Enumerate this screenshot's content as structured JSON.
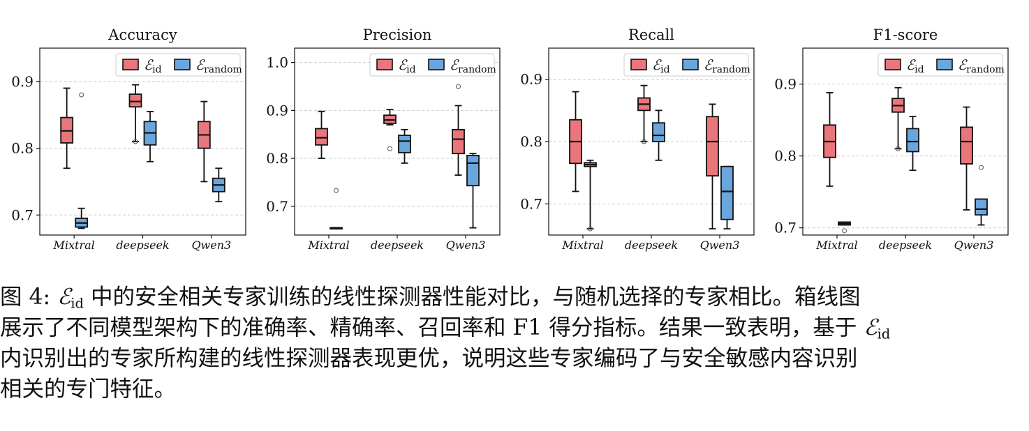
{
  "legend": {
    "e_id": "id",
    "e_random": "random",
    "symbol": "ℰ"
  },
  "colors": {
    "e_id": "#e8767a",
    "e_random": "#6aa6dd",
    "edge": "#111111",
    "grid": "#cccccc"
  },
  "caption": {
    "label": "图 4:",
    "symbol": "ℰ",
    "sub": "id",
    "line1_rest": " 中的安全相关专家训练的线性探测器性能对比，与随机选择的专家相比。箱线图",
    "line2": "展示了不同模型架构下的准确率、精确率、召回率和 F1 得分指标。结果一致表明，基于",
    "line3": "内识别出的专家所构建的线性探测器表现更优，说明这些专家编码了与安全敏感内容识别",
    "line4": "相关的专门特征。"
  },
  "chart_data": [
    {
      "type": "box",
      "title": "Accuracy",
      "categories": [
        "Mixtral",
        "deepseek",
        "Qwen3"
      ],
      "ylim": [
        0.67,
        0.95
      ],
      "yticks": [
        0.7,
        0.8,
        0.9
      ],
      "ytick_labels": [
        "0.7",
        "0.8",
        "0.9"
      ],
      "legend_position": "top-right",
      "series": [
        {
          "name": "E_id",
          "boxes": [
            {
              "whislo": 0.77,
              "q1": 0.808,
              "med": 0.826,
              "q3": 0.846,
              "whishi": 0.89,
              "fliers": []
            },
            {
              "whislo": 0.81,
              "q1": 0.862,
              "med": 0.87,
              "q3": 0.881,
              "whishi": 0.895,
              "fliers": [
                0.81
              ]
            },
            {
              "whislo": 0.75,
              "q1": 0.8,
              "med": 0.82,
              "q3": 0.84,
              "whishi": 0.87,
              "fliers": []
            }
          ]
        },
        {
          "name": "E_random",
          "boxes": [
            {
              "whislo": 0.68,
              "q1": 0.682,
              "med": 0.688,
              "q3": 0.695,
              "whishi": 0.71,
              "fliers": [
                0.88
              ]
            },
            {
              "whislo": 0.78,
              "q1": 0.805,
              "med": 0.823,
              "q3": 0.84,
              "whishi": 0.855,
              "fliers": []
            },
            {
              "whislo": 0.72,
              "q1": 0.735,
              "med": 0.745,
              "q3": 0.755,
              "whishi": 0.77,
              "fliers": []
            }
          ]
        }
      ]
    },
    {
      "type": "box",
      "title": "Precision",
      "categories": [
        "Mixtral",
        "deepseek",
        "Qwen3"
      ],
      "ylim": [
        0.64,
        1.03
      ],
      "yticks": [
        0.7,
        0.8,
        0.9,
        1.0
      ],
      "ytick_labels": [
        "0.7",
        "0.8",
        "0.9",
        "1.0"
      ],
      "legend_position": "top-right",
      "series": [
        {
          "name": "E_id",
          "boxes": [
            {
              "whislo": 0.8,
              "q1": 0.828,
              "med": 0.843,
              "q3": 0.862,
              "whishi": 0.898,
              "fliers": []
            },
            {
              "whislo": 0.87,
              "q1": 0.873,
              "med": 0.88,
              "q3": 0.89,
              "whishi": 0.902,
              "fliers": [
                0.82
              ]
            },
            {
              "whislo": 0.765,
              "q1": 0.81,
              "med": 0.84,
              "q3": 0.86,
              "whishi": 0.91,
              "fliers": [
                0.95
              ]
            }
          ]
        },
        {
          "name": "E_random",
          "boxes": [
            {
              "whislo": 0.655,
              "q1": 0.655,
              "med": 0.655,
              "q3": 0.655,
              "whishi": 0.655,
              "fliers": [
                0.733
              ]
            },
            {
              "whislo": 0.79,
              "q1": 0.812,
              "med": 0.836,
              "q3": 0.848,
              "whishi": 0.86,
              "fliers": []
            },
            {
              "whislo": 0.655,
              "q1": 0.743,
              "med": 0.79,
              "q3": 0.806,
              "whishi": 0.81,
              "fliers": []
            }
          ]
        }
      ]
    },
    {
      "type": "box",
      "title": "Recall",
      "categories": [
        "Mixtral",
        "deepseek",
        "Qwen3"
      ],
      "ylim": [
        0.65,
        0.95
      ],
      "yticks": [
        0.7,
        0.8,
        0.9
      ],
      "ytick_labels": [
        "0.7",
        "0.8",
        "0.9"
      ],
      "legend_position": "top-right",
      "series": [
        {
          "name": "E_id",
          "boxes": [
            {
              "whislo": 0.72,
              "q1": 0.765,
              "med": 0.8,
              "q3": 0.835,
              "whishi": 0.88,
              "fliers": []
            },
            {
              "whislo": 0.8,
              "q1": 0.85,
              "med": 0.86,
              "q3": 0.87,
              "whishi": 0.89,
              "fliers": [
                0.8
              ]
            },
            {
              "whislo": 0.66,
              "q1": 0.745,
              "med": 0.8,
              "q3": 0.84,
              "whishi": 0.86,
              "fliers": []
            }
          ]
        },
        {
          "name": "E_random",
          "boxes": [
            {
              "whislo": 0.66,
              "q1": 0.76,
              "med": 0.763,
              "q3": 0.766,
              "whishi": 0.77,
              "fliers": [
                0.66
              ]
            },
            {
              "whislo": 0.77,
              "q1": 0.8,
              "med": 0.81,
              "q3": 0.83,
              "whishi": 0.85,
              "fliers": []
            },
            {
              "whislo": 0.66,
              "q1": 0.675,
              "med": 0.72,
              "q3": 0.76,
              "whishi": 0.76,
              "fliers": []
            }
          ]
        }
      ]
    },
    {
      "type": "box",
      "title": "F1-score",
      "categories": [
        "Mixtral",
        "deepseek",
        "Qwen3"
      ],
      "ylim": [
        0.69,
        0.95
      ],
      "yticks": [
        0.7,
        0.8,
        0.9
      ],
      "ytick_labels": [
        "0.7",
        "0.8",
        "0.9"
      ],
      "legend_position": "top-right",
      "series": [
        {
          "name": "E_id",
          "boxes": [
            {
              "whislo": 0.758,
              "q1": 0.798,
              "med": 0.82,
              "q3": 0.843,
              "whishi": 0.888,
              "fliers": []
            },
            {
              "whislo": 0.81,
              "q1": 0.861,
              "med": 0.87,
              "q3": 0.88,
              "whishi": 0.895,
              "fliers": [
                0.81
              ]
            },
            {
              "whislo": 0.725,
              "q1": 0.789,
              "med": 0.82,
              "q3": 0.84,
              "whishi": 0.868,
              "fliers": []
            }
          ]
        },
        {
          "name": "E_random",
          "boxes": [
            {
              "whislo": 0.704,
              "q1": 0.704,
              "med": 0.706,
              "q3": 0.708,
              "whishi": 0.708,
              "fliers": [
                0.696
              ]
            },
            {
              "whislo": 0.78,
              "q1": 0.806,
              "med": 0.82,
              "q3": 0.838,
              "whishi": 0.855,
              "fliers": []
            },
            {
              "whislo": 0.704,
              "q1": 0.718,
              "med": 0.726,
              "q3": 0.74,
              "whishi": 0.74,
              "fliers": [
                0.784
              ]
            }
          ]
        }
      ]
    }
  ]
}
